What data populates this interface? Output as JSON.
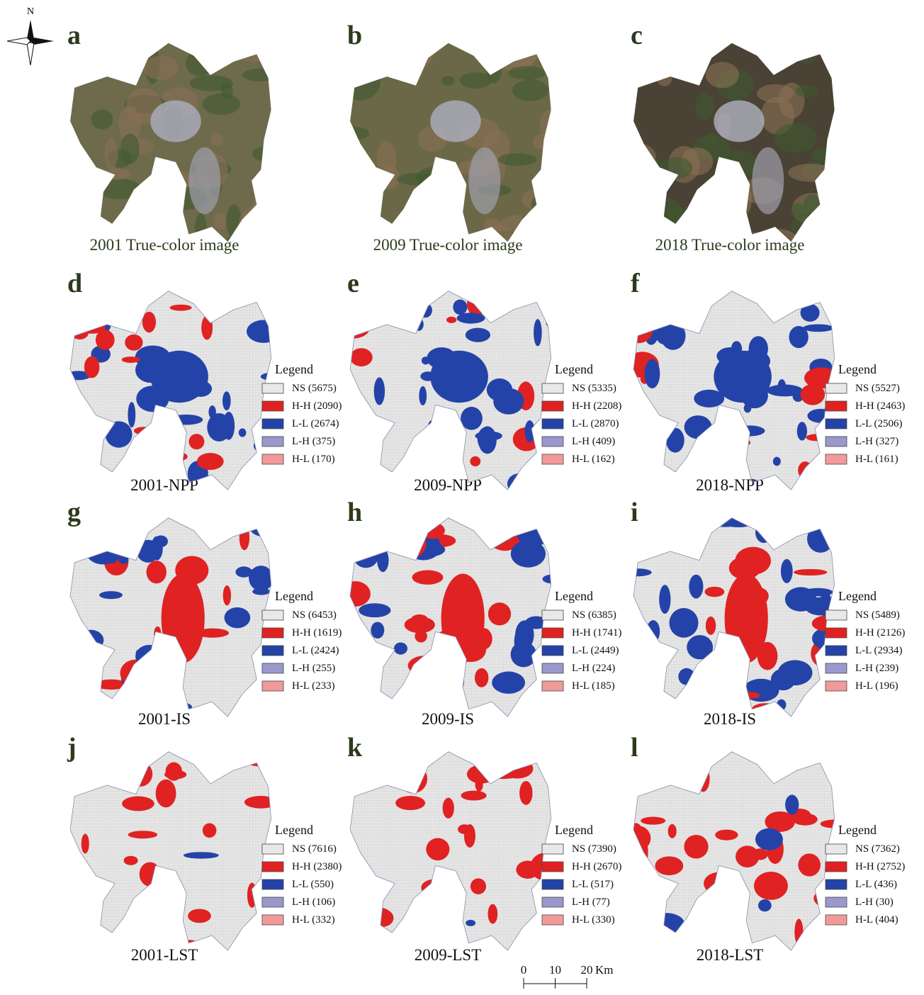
{
  "compass": "N",
  "panels": [
    {
      "letter": "a",
      "caption": "2001 True-color image"
    },
    {
      "letter": "b",
      "caption": "2009 True-color image"
    },
    {
      "letter": "c",
      "caption": "2018 True-color image"
    },
    {
      "letter": "d",
      "caption": "2001-NPP",
      "legend": {
        "title": "Legend",
        "items": [
          "NS (5675)",
          "H-H (2090)",
          "L-L (2674)",
          "L-H (375)",
          "H-L (170)"
        ]
      }
    },
    {
      "letter": "e",
      "caption": "2009-NPP",
      "legend": {
        "title": "Legend",
        "items": [
          "NS (5335)",
          "H-H (2208)",
          "L-L (2870)",
          "L-H (409)",
          "H-L (162)"
        ]
      }
    },
    {
      "letter": "f",
      "caption": "2018-NPP",
      "legend": {
        "title": "Legend",
        "items": [
          "NS (5527)",
          "H-H (2463)",
          "L-L (2506)",
          "L-H (327)",
          "H-L (161)"
        ]
      }
    },
    {
      "letter": "g",
      "caption": "2001-IS",
      "legend": {
        "title": "Legend",
        "items": [
          "NS (6453)",
          "H-H (1619)",
          "L-L (2424)",
          "L-H (255)",
          "H-L (233)"
        ]
      }
    },
    {
      "letter": "h",
      "caption": "2009-IS",
      "legend": {
        "title": "Legend",
        "items": [
          "NS (6385)",
          "H-H (1741)",
          "L-L (2449)",
          "L-H (224)",
          "H-L (185)"
        ]
      }
    },
    {
      "letter": "i",
      "caption": "2018-IS",
      "legend": {
        "title": "Legend",
        "items": [
          "NS (5489)",
          "H-H (2126)",
          "L-L (2934)",
          "L-H (239)",
          "H-L (196)"
        ]
      }
    },
    {
      "letter": "j",
      "caption": "2001-LST",
      "legend": {
        "title": "Legend",
        "items": [
          "NS (7616)",
          "H-H (2380)",
          "L-L (550)",
          "L-H (106)",
          "H-L (332)"
        ]
      }
    },
    {
      "letter": "k",
      "caption": "2009-LST",
      "legend": {
        "title": "Legend",
        "items": [
          "NS (7390)",
          "H-H (2670)",
          "L-L (517)",
          "L-H (77)",
          "H-L (330)"
        ]
      }
    },
    {
      "letter": "l",
      "caption": "2018-LST",
      "legend": {
        "title": "Legend",
        "items": [
          "NS (7362)",
          "H-H (2752)",
          "L-L (436)",
          "L-H (30)",
          "H-L (404)"
        ]
      }
    }
  ],
  "scale_bar": {
    "ticks": [
      0,
      10,
      20
    ],
    "unit": "Km"
  }
}
